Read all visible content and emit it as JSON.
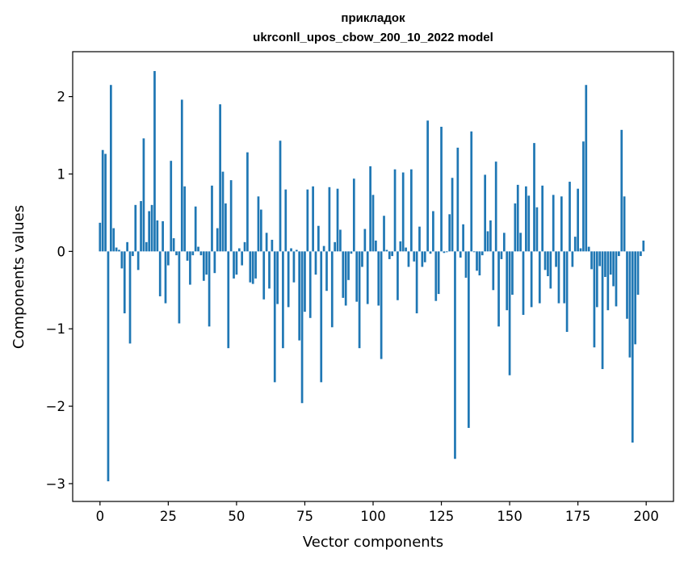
{
  "chart_data": {
    "type": "bar",
    "title_line1": "прикладок",
    "title_line2": "ukrconll_upos_cbow_200_10_2022 model",
    "xlabel": "Vector components",
    "ylabel": "Components values",
    "xlim": [
      -10,
      210
    ],
    "ylim": [
      -3.23,
      2.58
    ],
    "x_ticks": [
      0,
      25,
      50,
      75,
      100,
      125,
      150,
      175,
      200
    ],
    "x_tick_labels": [
      "0",
      "25",
      "50",
      "75",
      "100",
      "125",
      "150",
      "175",
      "200"
    ],
    "y_ticks": [
      -3,
      -2,
      -1,
      0,
      1,
      2
    ],
    "y_tick_labels": [
      "−3",
      "−2",
      "−1",
      "0",
      "1",
      "2"
    ],
    "bar_color": "#1f77b4",
    "x": [
      0,
      1,
      2,
      3,
      4,
      5,
      6,
      7,
      8,
      9,
      10,
      11,
      12,
      13,
      14,
      15,
      16,
      17,
      18,
      19,
      20,
      21,
      22,
      23,
      24,
      25,
      26,
      27,
      28,
      29,
      30,
      31,
      32,
      33,
      34,
      35,
      36,
      37,
      38,
      39,
      40,
      41,
      42,
      43,
      44,
      45,
      46,
      47,
      48,
      49,
      50,
      51,
      52,
      53,
      54,
      55,
      56,
      57,
      58,
      59,
      60,
      61,
      62,
      63,
      64,
      65,
      66,
      67,
      68,
      69,
      70,
      71,
      72,
      73,
      74,
      75,
      76,
      77,
      78,
      79,
      80,
      81,
      82,
      83,
      84,
      85,
      86,
      87,
      88,
      89,
      90,
      91,
      92,
      93,
      94,
      95,
      96,
      97,
      98,
      99,
      100,
      101,
      102,
      103,
      104,
      105,
      106,
      107,
      108,
      109,
      110,
      111,
      112,
      113,
      114,
      115,
      116,
      117,
      118,
      119,
      120,
      121,
      122,
      123,
      124,
      125,
      126,
      127,
      128,
      129,
      130,
      131,
      132,
      133,
      134,
      135,
      136,
      137,
      138,
      139,
      140,
      141,
      142,
      143,
      144,
      145,
      146,
      147,
      148,
      149,
      150,
      151,
      152,
      153,
      154,
      155,
      156,
      157,
      158,
      159,
      160,
      161,
      162,
      163,
      164,
      165,
      166,
      167,
      168,
      169,
      170,
      171,
      172,
      173,
      174,
      175,
      176,
      177,
      178,
      179,
      180,
      181,
      182,
      183,
      184,
      185,
      186,
      187,
      188,
      189,
      190,
      191,
      192,
      193,
      194,
      195,
      196,
      197,
      198,
      199
    ],
    "values": [
      0.37,
      1.31,
      1.26,
      -2.97,
      2.15,
      0.3,
      0.05,
      0.02,
      -0.22,
      -0.8,
      0.12,
      -1.19,
      -0.06,
      0.6,
      -0.24,
      0.65,
      1.46,
      0.12,
      0.52,
      0.6,
      2.33,
      0.4,
      -0.58,
      0.39,
      -0.67,
      -0.18,
      1.17,
      0.17,
      -0.05,
      -0.93,
      1.96,
      0.84,
      -0.12,
      -0.43,
      -0.05,
      0.58,
      0.06,
      -0.05,
      -0.38,
      -0.3,
      -0.97,
      0.85,
      -0.28,
      0.3,
      1.9,
      1.03,
      0.62,
      -1.25,
      0.92,
      -0.35,
      -0.3,
      0.04,
      -0.18,
      0.12,
      1.28,
      -0.4,
      -0.42,
      -0.35,
      0.71,
      0.54,
      -0.62,
      0.24,
      -0.48,
      0.15,
      -1.69,
      -0.68,
      1.43,
      -1.25,
      0.8,
      -0.72,
      0.04,
      -0.4,
      0.02,
      -1.15,
      -1.96,
      -0.78,
      0.8,
      -0.86,
      0.84,
      -0.3,
      0.33,
      -1.69,
      0.07,
      -0.51,
      0.83,
      -0.98,
      0.12,
      0.81,
      0.28,
      -0.6,
      -0.7,
      -0.37,
      -0.03,
      0.94,
      -0.65,
      -1.25,
      -0.2,
      0.29,
      -0.68,
      1.1,
      0.73,
      0.14,
      -0.7,
      -1.39,
      0.46,
      0.02,
      -0.1,
      -0.06,
      1.06,
      -0.63,
      0.13,
      1.02,
      0.05,
      -0.2,
      1.06,
      -0.13,
      -0.8,
      0.32,
      -0.2,
      -0.14,
      1.69,
      -0.03,
      0.52,
      -0.64,
      -0.55,
      1.61,
      -0.02,
      -0.01,
      0.48,
      0.95,
      -2.68,
      1.34,
      -0.08,
      0.35,
      -0.34,
      -2.28,
      1.55,
      -0.01,
      -0.25,
      -0.31,
      -0.05,
      0.99,
      0.26,
      0.4,
      -0.5,
      1.16,
      -0.97,
      -0.1,
      0.24,
      -0.76,
      -1.6,
      -0.56,
      0.62,
      0.86,
      0.24,
      -0.82,
      0.84,
      0.72,
      -0.72,
      1.4,
      0.57,
      -0.67,
      0.85,
      -0.24,
      -0.32,
      -0.48,
      0.73,
      -0.2,
      -0.67,
      0.71,
      -0.67,
      -1.04,
      0.9,
      -0.2,
      0.19,
      0.81,
      0.04,
      1.42,
      2.15,
      0.06,
      -0.23,
      -1.24,
      -0.72,
      -0.19,
      -1.52,
      -0.33,
      -0.76,
      -0.3,
      -0.45,
      -0.71,
      -0.06,
      1.57,
      0.71,
      -0.87,
      -1.37,
      -2.47,
      -1.2,
      -0.56,
      -0.06,
      0.14
    ]
  }
}
